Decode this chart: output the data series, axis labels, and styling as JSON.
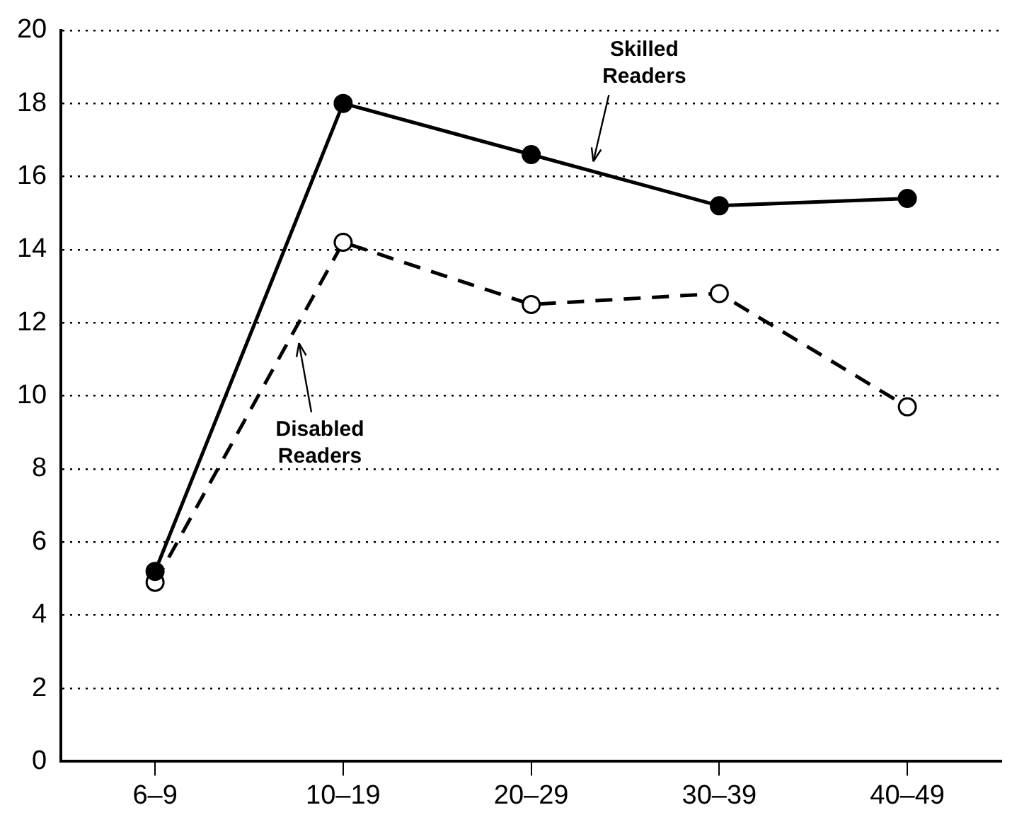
{
  "chart_data": {
    "type": "line",
    "categories": [
      "6–9",
      "10–19",
      "20–29",
      "30–39",
      "40–49"
    ],
    "series": [
      {
        "name": "Skilled Readers",
        "color": "#000000",
        "marker": "circle",
        "line_style": "solid",
        "values": [
          5.2,
          18,
          16.6,
          15.2,
          15.4
        ]
      },
      {
        "name": "Disabled Readers",
        "color": "#000000",
        "marker": "circle",
        "line_style": "dashed",
        "values": [
          4.9,
          14.2,
          12.5,
          12.8,
          9.7
        ]
      }
    ],
    "ylim": [
      0,
      20
    ],
    "yticks": [
      0,
      2,
      4,
      6,
      8,
      10,
      12,
      14,
      16,
      18,
      20
    ],
    "grid": "y",
    "legend": false
  }
}
